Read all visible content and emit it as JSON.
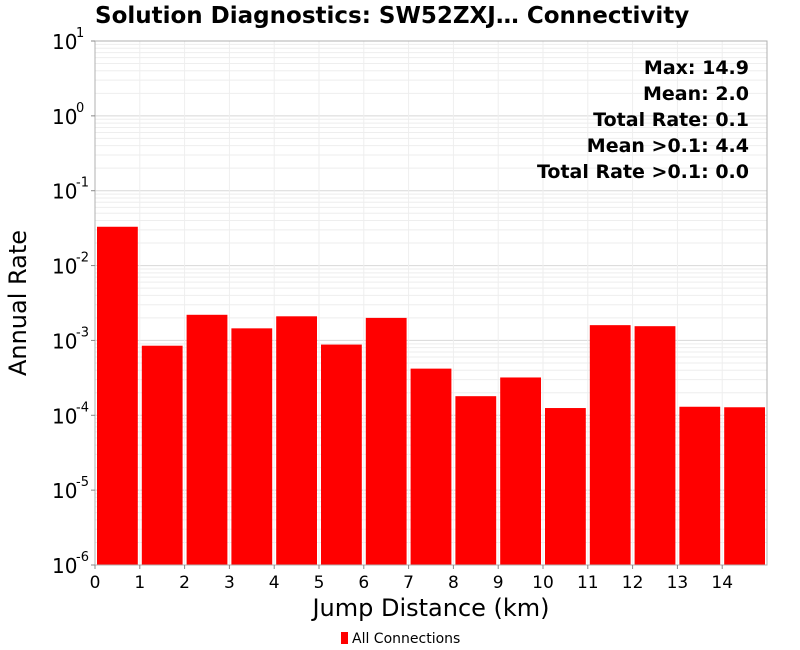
{
  "chart_data": {
    "type": "bar",
    "title": "Solution Diagnostics: SW52ZXJ… Connectivity",
    "xlabel": "Jump Distance (km)",
    "ylabel": "Annual Rate",
    "y_scale": "log",
    "ylim": [
      1e-06,
      10
    ],
    "y_ticks": [
      {
        "base": "10",
        "exp": "1",
        "value": 10
      },
      {
        "base": "10",
        "exp": "0",
        "value": 1
      },
      {
        "base": "10",
        "exp": "-1",
        "value": 0.1
      },
      {
        "base": "10",
        "exp": "-2",
        "value": 0.01
      },
      {
        "base": "10",
        "exp": "-3",
        "value": 0.001
      },
      {
        "base": "10",
        "exp": "-4",
        "value": 0.0001
      },
      {
        "base": "10",
        "exp": "-5",
        "value": 1e-05
      },
      {
        "base": "10",
        "exp": "-6",
        "value": 1e-06
      }
    ],
    "xlim": [
      0,
      15
    ],
    "x_ticks": [
      "0",
      "1",
      "2",
      "3",
      "4",
      "5",
      "6",
      "7",
      "8",
      "9",
      "10",
      "11",
      "12",
      "13",
      "14"
    ],
    "bin_width": 1,
    "grid": true,
    "bar_color": "#ff0000",
    "series": [
      {
        "name": "All Connections",
        "x": [
          0.5,
          1.5,
          2.5,
          3.5,
          4.5,
          5.5,
          6.5,
          7.5,
          8.5,
          9.5,
          10.5,
          11.5,
          12.5,
          13.5,
          14.5
        ],
        "values": [
          0.033,
          0.00085,
          0.0022,
          0.00145,
          0.0021,
          0.00088,
          0.002,
          0.00042,
          0.00018,
          0.00032,
          0.000125,
          0.0016,
          0.00155,
          0.00013,
          0.000128
        ]
      }
    ],
    "annotations": [
      "Max: 14.9",
      "Mean: 2.0",
      "Total Rate: 0.1",
      "Mean >0.1: 4.4",
      "Total Rate >0.1: 0.0"
    ],
    "legend_position": "bottom-center"
  }
}
